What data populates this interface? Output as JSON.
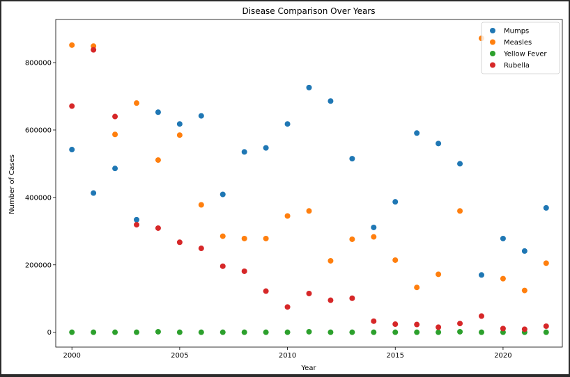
{
  "chart_data": {
    "type": "scatter",
    "title": "Disease Comparison Over Years",
    "xlabel": "Year",
    "ylabel": "Number of Cases",
    "xlim": [
      1999.25,
      2022.75
    ],
    "ylim": [
      -44000,
      928000
    ],
    "x_ticks": [
      2000,
      2005,
      2010,
      2015,
      2020
    ],
    "y_ticks": [
      0,
      200000,
      400000,
      600000,
      800000
    ],
    "grid": false,
    "legend_position": "top-right",
    "x": [
      2000,
      2001,
      2002,
      2003,
      2004,
      2005,
      2006,
      2007,
      2008,
      2009,
      2010,
      2011,
      2012,
      2013,
      2014,
      2015,
      2016,
      2017,
      2018,
      2019,
      2020,
      2021,
      2022
    ],
    "series": [
      {
        "name": "Mumps",
        "color": "#1f77b4",
        "values": [
          542000,
          413000,
          486000,
          334000,
          653000,
          618000,
          642000,
          409000,
          535000,
          547000,
          618000,
          726000,
          686000,
          515000,
          311000,
          387000,
          591000,
          560000,
          500000,
          170000,
          278000,
          241000,
          369000
        ]
      },
      {
        "name": "Measles",
        "color": "#ff7f0e",
        "values": [
          852000,
          849000,
          587000,
          680000,
          511000,
          585000,
          378000,
          285000,
          278000,
          278000,
          345000,
          360000,
          212000,
          276000,
          283000,
          214000,
          133000,
          172000,
          360000,
          872000,
          159000,
          124000,
          205000
        ]
      },
      {
        "name": "Yellow Fever",
        "color": "#2ca02c",
        "values": [
          0,
          0,
          0,
          0,
          1500,
          0,
          0,
          0,
          0,
          0,
          0,
          1500,
          0,
          0,
          0,
          0,
          0,
          0,
          1500,
          0,
          0,
          0,
          0
        ]
      },
      {
        "name": "Rubella",
        "color": "#d62728",
        "values": [
          671000,
          838000,
          640000,
          319000,
          309000,
          267000,
          249000,
          196000,
          181000,
          122000,
          75000,
          115000,
          95000,
          101000,
          33000,
          24000,
          23000,
          15000,
          26000,
          48000,
          11000,
          9000,
          18000
        ]
      }
    ]
  }
}
